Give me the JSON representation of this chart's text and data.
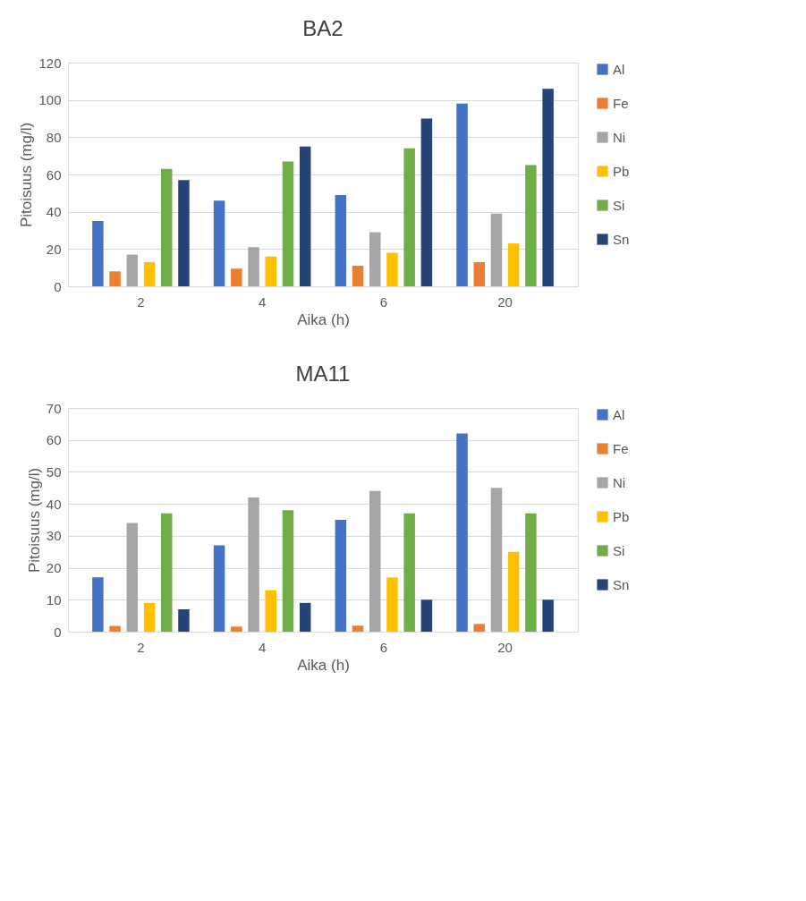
{
  "chart_data": [
    {
      "type": "bar",
      "title": "BA2",
      "xlabel": "Aika (h)",
      "ylabel": "Pitoisuus (mg/l)",
      "categories": [
        "2",
        "4",
        "6",
        "20"
      ],
      "series": [
        {
          "name": "Al",
          "color": "#4472c4",
          "values": [
            35,
            46,
            49,
            98
          ]
        },
        {
          "name": "Fe",
          "color": "#ed7d31",
          "values": [
            8,
            9.5,
            11,
            13
          ]
        },
        {
          "name": "Ni",
          "color": "#a5a5a5",
          "values": [
            17,
            21,
            29,
            39
          ]
        },
        {
          "name": "Pb",
          "color": "#ffc000",
          "values": [
            13,
            16,
            18,
            23
          ]
        },
        {
          "name": "Si",
          "color": "#70ad47",
          "values": [
            63,
            67,
            74,
            65
          ]
        },
        {
          "name": "Sn",
          "color": "#264478",
          "values": [
            57,
            75,
            90,
            106
          ]
        }
      ],
      "ylim": [
        0,
        120
      ],
      "yticks": [
        0,
        20,
        40,
        60,
        80,
        100,
        120
      ],
      "grid": "y",
      "legend": "right"
    },
    {
      "type": "bar",
      "title": "MA11",
      "xlabel": "Aika (h)",
      "ylabel": "Pitoisuus (mg/l)",
      "categories": [
        "2",
        "4",
        "6",
        "20"
      ],
      "series": [
        {
          "name": "Al",
          "color": "#4472c4",
          "values": [
            17,
            27,
            35,
            62
          ]
        },
        {
          "name": "Fe",
          "color": "#ed7d31",
          "values": [
            1.8,
            1.6,
            1.9,
            2.4
          ]
        },
        {
          "name": "Ni",
          "color": "#a5a5a5",
          "values": [
            34,
            42,
            44,
            45
          ]
        },
        {
          "name": "Pb",
          "color": "#ffc000",
          "values": [
            9,
            13,
            17,
            25
          ]
        },
        {
          "name": "Si",
          "color": "#70ad47",
          "values": [
            37,
            38,
            37,
            37
          ]
        },
        {
          "name": "Sn",
          "color": "#264478",
          "values": [
            7,
            9,
            10,
            10
          ]
        }
      ],
      "ylim": [
        0,
        70
      ],
      "yticks": [
        0,
        10,
        20,
        30,
        40,
        50,
        60,
        70
      ],
      "grid": "y",
      "legend": "right"
    }
  ]
}
